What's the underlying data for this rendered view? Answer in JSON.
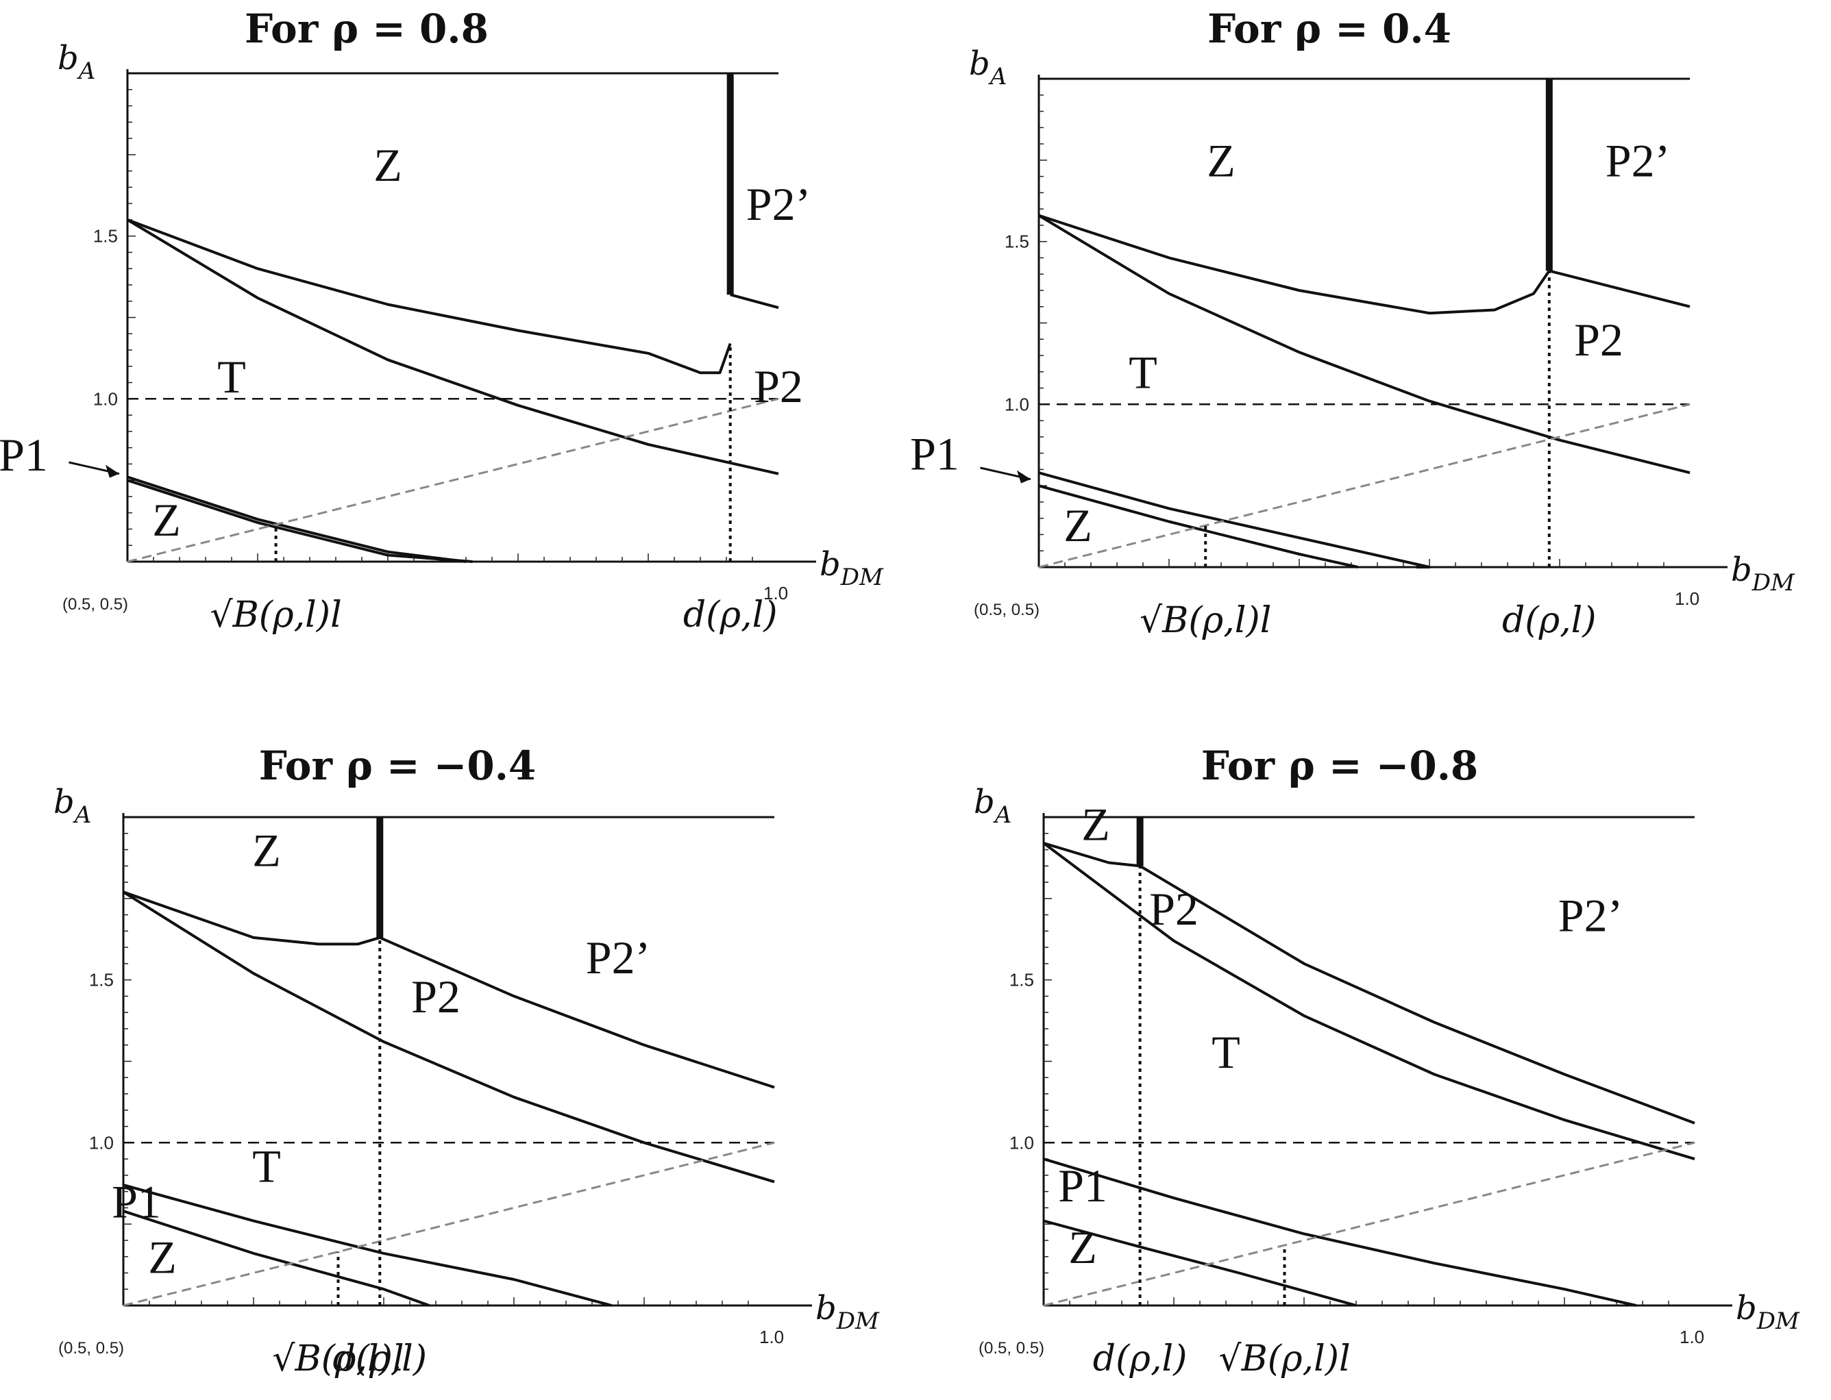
{
  "chart_data": [
    {
      "type": "line",
      "title": "For ρ = 0.8",
      "xlabel": "b_DM",
      "ylabel": "b_A",
      "corner_label": "(0.5, 0.5)",
      "x_end_label": "1.0",
      "xlim": [
        0.5,
        1.0
      ],
      "ylim": [
        0.5,
        2.0
      ],
      "yticks": [
        {
          "value": 1.5,
          "label": "1.5"
        },
        {
          "value": 1.0,
          "label": "1.0"
        }
      ],
      "x_annotations": [
        {
          "x": 0.614,
          "label": "√B(ρ,l)l"
        },
        {
          "x": 0.963,
          "label": "d(ρ,l)"
        }
      ],
      "regions": [
        {
          "label": "Z",
          "x": 0.7,
          "y": 1.67
        },
        {
          "label": "P2’",
          "x": 1.0,
          "y": 1.55
        },
        {
          "label": "T",
          "x": 0.58,
          "y": 1.02
        },
        {
          "label": "P2",
          "x": 1.0,
          "y": 0.99
        },
        {
          "label": "P1",
          "x": 0.42,
          "y": 0.78
        },
        {
          "label": "Z",
          "x": 0.53,
          "y": 0.58
        }
      ],
      "series": [
        {
          "style": "solid",
          "x": [
            0.5,
            0.6,
            0.7,
            0.8,
            0.9,
            0.94,
            0.955,
            0.963
          ],
          "y": [
            1.55,
            1.4,
            1.29,
            1.21,
            1.14,
            1.08,
            1.08,
            1.17
          ]
        },
        {
          "style": "solid",
          "x": [
            0.963,
            1.0
          ],
          "y": [
            1.32,
            1.28
          ]
        },
        {
          "style": "solid",
          "x": [
            0.5,
            0.6,
            0.7,
            0.8,
            0.9,
            1.0
          ],
          "y": [
            1.55,
            1.31,
            1.12,
            0.98,
            0.86,
            0.77
          ]
        },
        {
          "style": "solid",
          "x": [
            0.5,
            0.6,
            0.7,
            0.76
          ],
          "y": [
            0.76,
            0.63,
            0.53,
            0.5
          ]
        },
        {
          "style": "solid",
          "x": [
            0.5,
            0.6,
            0.7,
            0.765
          ],
          "y": [
            0.75,
            0.62,
            0.52,
            0.5
          ]
        },
        {
          "style": "dashed",
          "x": [
            0.5,
            1.0
          ],
          "y": [
            1.0,
            1.0
          ]
        },
        {
          "style": "dashed-gray",
          "x": [
            0.5,
            1.0
          ],
          "y": [
            0.5,
            1.0
          ]
        },
        {
          "style": "dotted",
          "x": [
            0.614,
            0.614
          ],
          "y": [
            0.5,
            0.614
          ]
        },
        {
          "style": "dotted",
          "x": [
            0.963,
            0.963
          ],
          "y": [
            0.5,
            1.17
          ]
        },
        {
          "style": "thick",
          "x": [
            0.963,
            0.963
          ],
          "y": [
            1.32,
            2.0
          ]
        }
      ]
    },
    {
      "type": "line",
      "title": "For ρ = 0.4",
      "xlabel": "b_DM",
      "ylabel": "b_A",
      "corner_label": "(0.5, 0.5)",
      "x_end_label": "1.0",
      "xlim": [
        0.5,
        1.0
      ],
      "ylim": [
        0.5,
        2.0
      ],
      "yticks": [
        {
          "value": 1.5,
          "label": "1.5"
        },
        {
          "value": 1.0,
          "label": "1.0"
        }
      ],
      "x_annotations": [
        {
          "x": 0.628,
          "label": "√B(ρ,l)l"
        },
        {
          "x": 0.892,
          "label": "d(ρ,l)"
        }
      ],
      "regions": [
        {
          "label": "Z",
          "x": 0.64,
          "y": 1.7
        },
        {
          "label": "P2’",
          "x": 0.96,
          "y": 1.7
        },
        {
          "label": "P2",
          "x": 0.93,
          "y": 1.15
        },
        {
          "label": "T",
          "x": 0.58,
          "y": 1.05
        },
        {
          "label": "P1",
          "x": 0.42,
          "y": 0.8
        },
        {
          "label": "Z",
          "x": 0.53,
          "y": 0.58
        }
      ],
      "series": [
        {
          "style": "solid",
          "x": [
            0.5,
            0.6,
            0.7,
            0.8,
            0.85,
            0.88,
            0.892
          ],
          "y": [
            1.58,
            1.45,
            1.35,
            1.28,
            1.29,
            1.34,
            1.41
          ]
        },
        {
          "style": "solid",
          "x": [
            0.892,
            1.0
          ],
          "y": [
            1.41,
            1.3
          ]
        },
        {
          "style": "solid",
          "x": [
            0.5,
            0.6,
            0.7,
            0.8,
            0.9,
            1.0
          ],
          "y": [
            1.58,
            1.34,
            1.16,
            1.01,
            0.89,
            0.79
          ]
        },
        {
          "style": "solid",
          "x": [
            0.5,
            0.6,
            0.7,
            0.8,
            0.79
          ],
          "y": [
            0.79,
            0.68,
            0.59,
            0.5,
            0.5
          ]
        },
        {
          "style": "solid",
          "x": [
            0.5,
            0.6,
            0.7,
            0.745
          ],
          "y": [
            0.75,
            0.64,
            0.54,
            0.5
          ]
        },
        {
          "style": "dashed",
          "x": [
            0.5,
            1.0
          ],
          "y": [
            1.0,
            1.0
          ]
        },
        {
          "style": "dashed-gray",
          "x": [
            0.5,
            1.0
          ],
          "y": [
            0.5,
            1.0
          ]
        },
        {
          "style": "dotted",
          "x": [
            0.628,
            0.628
          ],
          "y": [
            0.5,
            0.628
          ]
        },
        {
          "style": "dotted",
          "x": [
            0.892,
            0.892
          ],
          "y": [
            0.5,
            1.41
          ]
        },
        {
          "style": "thick",
          "x": [
            0.892,
            0.892
          ],
          "y": [
            1.41,
            2.0
          ]
        }
      ]
    },
    {
      "type": "line",
      "title": "For ρ = −0.4",
      "xlabel": "b_DM",
      "ylabel": "b_A",
      "corner_label": "(0.5, 0.5)",
      "x_end_label": "1.0",
      "xlim": [
        0.5,
        1.0
      ],
      "ylim": [
        0.5,
        2.0
      ],
      "yticks": [
        {
          "value": 1.5,
          "label": "1.5"
        },
        {
          "value": 1.0,
          "label": "1.0"
        }
      ],
      "x_annotations": [
        {
          "x": 0.665,
          "label": "√B(ρ,l)l"
        },
        {
          "x": 0.697,
          "label": "d(ρ,l)"
        }
      ],
      "regions": [
        {
          "label": "Z",
          "x": 0.61,
          "y": 1.85
        },
        {
          "label": "P2",
          "x": 0.74,
          "y": 1.4
        },
        {
          "label": "P2’",
          "x": 0.88,
          "y": 1.52
        },
        {
          "label": "T",
          "x": 0.61,
          "y": 0.88
        },
        {
          "label": "P1",
          "x": 0.51,
          "y": 0.77
        },
        {
          "label": "Z",
          "x": 0.53,
          "y": 0.6
        }
      ],
      "series": [
        {
          "style": "solid",
          "x": [
            0.5,
            0.6,
            0.65,
            0.68,
            0.697
          ],
          "y": [
            1.77,
            1.63,
            1.61,
            1.61,
            1.63
          ]
        },
        {
          "style": "solid",
          "x": [
            0.697,
            0.8,
            0.9,
            1.0
          ],
          "y": [
            1.63,
            1.45,
            1.3,
            1.17
          ]
        },
        {
          "style": "solid",
          "x": [
            0.5,
            0.6,
            0.7,
            0.8,
            0.9,
            1.0
          ],
          "y": [
            1.77,
            1.52,
            1.31,
            1.14,
            1.0,
            0.88
          ]
        },
        {
          "style": "solid",
          "x": [
            0.5,
            0.6,
            0.7,
            0.8,
            0.875
          ],
          "y": [
            0.87,
            0.76,
            0.66,
            0.58,
            0.5
          ]
        },
        {
          "style": "solid",
          "x": [
            0.5,
            0.6,
            0.7,
            0.735
          ],
          "y": [
            0.79,
            0.66,
            0.55,
            0.5
          ]
        },
        {
          "style": "dashed",
          "x": [
            0.5,
            1.0
          ],
          "y": [
            1.0,
            1.0
          ]
        },
        {
          "style": "dashed-gray",
          "x": [
            0.5,
            1.0
          ],
          "y": [
            0.5,
            1.0
          ]
        },
        {
          "style": "dotted",
          "x": [
            0.665,
            0.665
          ],
          "y": [
            0.5,
            0.665
          ]
        },
        {
          "style": "dotted",
          "x": [
            0.697,
            0.697
          ],
          "y": [
            0.5,
            1.63
          ]
        },
        {
          "style": "thick",
          "x": [
            0.697,
            0.697
          ],
          "y": [
            1.63,
            2.0
          ]
        }
      ]
    },
    {
      "type": "line",
      "title": "For ρ = −0.8",
      "xlabel": "b_DM",
      "ylabel": "b_A",
      "corner_label": "(0.5, 0.5)",
      "x_end_label": "1.0",
      "xlim": [
        0.5,
        1.0
      ],
      "ylim": [
        0.5,
        2.0
      ],
      "yticks": [
        {
          "value": 1.5,
          "label": "1.5"
        },
        {
          "value": 1.0,
          "label": "1.0"
        }
      ],
      "x_annotations": [
        {
          "x": 0.574,
          "label": "d(ρ,l)"
        },
        {
          "x": 0.685,
          "label": "√B(ρ,l)l"
        }
      ],
      "regions": [
        {
          "label": "Z",
          "x": 0.54,
          "y": 1.93
        },
        {
          "label": "P2",
          "x": 0.6,
          "y": 1.67
        },
        {
          "label": "P2’",
          "x": 0.92,
          "y": 1.65
        },
        {
          "label": "T",
          "x": 0.64,
          "y": 1.23
        },
        {
          "label": "P1",
          "x": 0.53,
          "y": 0.82
        },
        {
          "label": "Z",
          "x": 0.53,
          "y": 0.63
        }
      ],
      "series": [
        {
          "style": "solid",
          "x": [
            0.5,
            0.55,
            0.574
          ],
          "y": [
            1.92,
            1.86,
            1.85
          ]
        },
        {
          "style": "solid",
          "x": [
            0.574,
            0.7,
            0.8,
            0.9,
            1.0
          ],
          "y": [
            1.85,
            1.55,
            1.37,
            1.21,
            1.06
          ]
        },
        {
          "style": "solid",
          "x": [
            0.5,
            0.6,
            0.7,
            0.8,
            0.9,
            1.0
          ],
          "y": [
            1.92,
            1.62,
            1.39,
            1.21,
            1.07,
            0.95
          ]
        },
        {
          "style": "solid",
          "x": [
            0.5,
            0.6,
            0.7,
            0.8,
            0.9,
            0.955
          ],
          "y": [
            0.95,
            0.83,
            0.72,
            0.63,
            0.55,
            0.5
          ]
        },
        {
          "style": "solid",
          "x": [
            0.5,
            0.574,
            0.65,
            0.74
          ],
          "y": [
            0.76,
            0.68,
            0.6,
            0.5
          ]
        },
        {
          "style": "dashed",
          "x": [
            0.5,
            1.0
          ],
          "y": [
            1.0,
            1.0
          ]
        },
        {
          "style": "dashed-gray",
          "x": [
            0.5,
            1.0
          ],
          "y": [
            0.5,
            1.0
          ]
        },
        {
          "style": "dotted",
          "x": [
            0.685,
            0.685
          ],
          "y": [
            0.5,
            0.685
          ]
        },
        {
          "style": "dotted",
          "x": [
            0.574,
            0.574
          ],
          "y": [
            0.5,
            1.85
          ]
        },
        {
          "style": "thick",
          "x": [
            0.574,
            0.574
          ],
          "y": [
            1.85,
            2.0
          ]
        }
      ]
    }
  ]
}
